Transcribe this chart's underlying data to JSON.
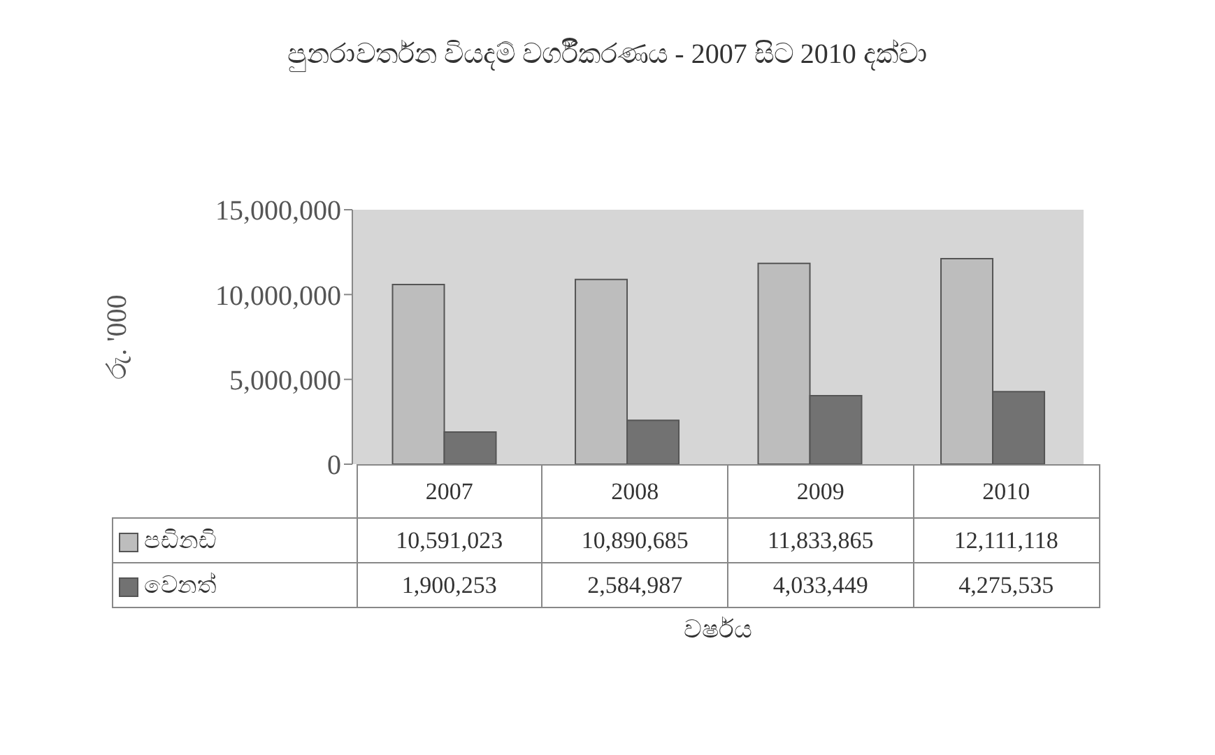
{
  "chart_data": {
    "type": "bar",
    "title": "පුනරාවර්තන වියදම් වර්ගීකරණය - 2007 සිට 2010 දක්වා",
    "xlabel": "වර්ෂය",
    "ylabel": "රු. '000",
    "categories": [
      "2007",
      "2008",
      "2009",
      "2010"
    ],
    "series": [
      {
        "name": "පඩිනඩි",
        "color": "#bdbdbd",
        "values": [
          10591023,
          10890685,
          11833865,
          12111118
        ],
        "value_labels": [
          "10,591,023",
          "10,890,685",
          "11,833,865",
          "12,111,118"
        ]
      },
      {
        "name": "වෙනත්",
        "color": "#727272",
        "values": [
          1900253,
          2584987,
          4033449,
          4275535
        ],
        "value_labels": [
          "1,900,253",
          "2,584,987",
          "4,033,449",
          "4,275,535"
        ]
      }
    ],
    "ylim": [
      0,
      15000000
    ],
    "yticks": [
      0,
      {
        "value": 5000000,
        "label": "5,000,000"
      },
      {
        "value": 10000000,
        "label": "10,000,000"
      },
      {
        "value": 15000000,
        "label": "15,000,000"
      }
    ],
    "grid": false,
    "legend": "bottom"
  }
}
